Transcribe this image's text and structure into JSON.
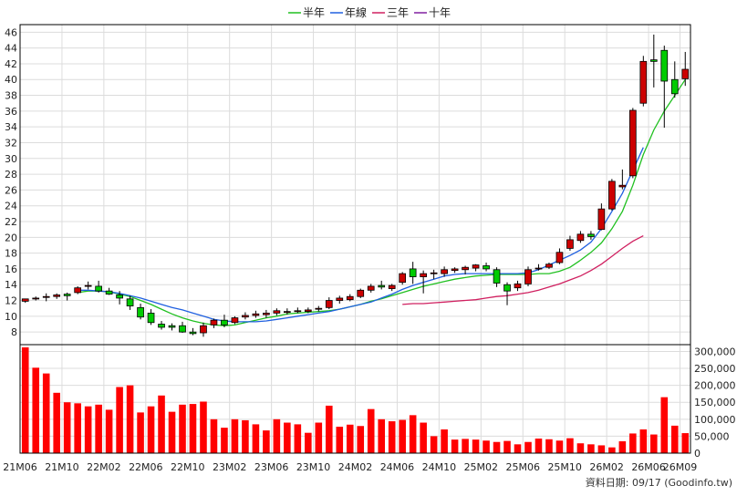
{
  "chart_data": {
    "type": "candlestick+line+bar",
    "legend": [
      {
        "name": "半年",
        "color": "#20c020"
      },
      {
        "name": "年線",
        "color": "#2060e0"
      },
      {
        "name": "三年",
        "color": "#d02060"
      },
      {
        "name": "十年",
        "color": "#8020a0"
      }
    ],
    "price_axis": {
      "ticks": [
        8,
        10,
        12,
        14,
        16,
        18,
        20,
        22,
        24,
        26,
        28,
        30,
        32,
        34,
        36,
        38,
        40,
        42,
        44,
        46
      ],
      "range": [
        6.4,
        46.5
      ]
    },
    "volume_axis": {
      "ticks": [
        "0",
        "50,000",
        "100,000",
        "150,000",
        "200,000",
        "250,000",
        "300,000"
      ],
      "range": [
        0,
        320000
      ]
    },
    "x_labels": [
      "21M06",
      "21M10",
      "22M02",
      "22M06",
      "22M10",
      "23M02",
      "23M06",
      "23M10",
      "24M02",
      "24M06",
      "24M10",
      "25M02",
      "25M06",
      "25M10",
      "26M02",
      "26M06",
      "26M09"
    ],
    "x_label_positions": [
      0,
      4,
      8,
      12,
      16,
      20,
      24,
      28,
      32,
      36,
      40,
      44,
      48,
      52,
      56,
      60,
      63
    ],
    "candles": [
      [
        11.9,
        12.2,
        11.7,
        12.2
      ],
      [
        12.2,
        12.5,
        12.0,
        12.3
      ],
      [
        12.4,
        12.9,
        11.9,
        12.5
      ],
      [
        12.5,
        12.9,
        12.2,
        12.7
      ],
      [
        12.8,
        13.0,
        12.0,
        12.6
      ],
      [
        13.0,
        13.8,
        12.8,
        13.6
      ],
      [
        13.8,
        14.4,
        13.4,
        13.9
      ],
      [
        13.8,
        14.5,
        13.0,
        13.2
      ],
      [
        13.2,
        13.6,
        12.7,
        12.8
      ],
      [
        12.7,
        13.2,
        11.5,
        12.3
      ],
      [
        12.2,
        12.6,
        10.8,
        11.3
      ],
      [
        11.1,
        11.6,
        9.6,
        9.9
      ],
      [
        10.4,
        10.9,
        8.9,
        9.2
      ],
      [
        9.0,
        9.4,
        8.3,
        8.6
      ],
      [
        8.8,
        9.1,
        8.2,
        8.6
      ],
      [
        8.8,
        9.3,
        7.9,
        8.0
      ],
      [
        8.0,
        8.5,
        7.6,
        7.8
      ],
      [
        7.9,
        9.2,
        7.4,
        8.8
      ],
      [
        8.9,
        9.7,
        8.5,
        9.5
      ],
      [
        9.5,
        10.2,
        8.6,
        8.9
      ],
      [
        9.2,
        10.0,
        9.0,
        9.8
      ],
      [
        9.9,
        10.5,
        9.6,
        10.1
      ],
      [
        10.1,
        10.7,
        9.8,
        10.3
      ],
      [
        10.2,
        10.8,
        9.8,
        10.4
      ],
      [
        10.4,
        11.0,
        10.1,
        10.7
      ],
      [
        10.6,
        11.0,
        10.2,
        10.6
      ],
      [
        10.7,
        11.1,
        10.4,
        10.7
      ],
      [
        10.6,
        11.1,
        10.4,
        10.8
      ],
      [
        10.9,
        11.3,
        10.6,
        11.0
      ],
      [
        11.1,
        12.4,
        10.9,
        12.0
      ],
      [
        12.0,
        12.6,
        11.6,
        12.3
      ],
      [
        12.1,
        12.8,
        11.9,
        12.5
      ],
      [
        12.5,
        13.5,
        12.3,
        13.3
      ],
      [
        13.3,
        14.1,
        13.0,
        13.8
      ],
      [
        13.9,
        14.5,
        13.4,
        13.7
      ],
      [
        13.5,
        14.1,
        13.2,
        13.9
      ],
      [
        14.3,
        15.6,
        14.0,
        15.4
      ],
      [
        16.0,
        16.9,
        14.1,
        15.0
      ],
      [
        15.0,
        15.8,
        12.9,
        15.4
      ],
      [
        15.4,
        15.9,
        14.7,
        15.5
      ],
      [
        15.4,
        16.3,
        15.0,
        15.9
      ],
      [
        15.8,
        16.2,
        15.5,
        16.0
      ],
      [
        15.9,
        16.4,
        15.3,
        16.2
      ],
      [
        16.1,
        16.6,
        15.7,
        16.5
      ],
      [
        16.4,
        16.8,
        15.7,
        16.0
      ],
      [
        15.9,
        16.2,
        13.7,
        14.2
      ],
      [
        14.0,
        14.3,
        11.4,
        13.2
      ],
      [
        13.6,
        14.5,
        13.2,
        14.1
      ],
      [
        14.1,
        16.3,
        13.8,
        15.9
      ],
      [
        16.0,
        16.6,
        15.8,
        16.1
      ],
      [
        16.2,
        16.8,
        16.0,
        16.6
      ],
      [
        16.8,
        18.6,
        16.6,
        18.1
      ],
      [
        18.6,
        20.2,
        18.3,
        19.7
      ],
      [
        19.6,
        20.8,
        19.3,
        20.4
      ],
      [
        20.4,
        20.8,
        19.7,
        20.1
      ],
      [
        21.0,
        24.3,
        20.9,
        23.6
      ],
      [
        23.6,
        27.4,
        23.4,
        27.1
      ],
      [
        26.4,
        28.6,
        26.1,
        26.6
      ],
      [
        27.8,
        36.4,
        27.5,
        36.1
      ],
      [
        37.0,
        43.0,
        36.6,
        42.3
      ],
      [
        42.5,
        45.7,
        39.0,
        42.3
      ],
      [
        43.7,
        44.3,
        33.9,
        39.8
      ],
      [
        40.0,
        42.3,
        37.7,
        38.2
      ],
      [
        40.1,
        43.5,
        39.2,
        41.3
      ]
    ],
    "series": [
      {
        "name": "半年",
        "start": 5,
        "values": [
          13.0,
          13.2,
          13.2,
          13.1,
          12.8,
          12.5,
          12.0,
          11.5,
          10.9,
          10.3,
          9.8,
          9.4,
          9.1,
          8.9,
          8.8,
          8.9,
          9.2,
          9.5,
          9.8,
          10.0,
          10.3,
          10.4,
          10.5,
          10.6,
          10.7,
          10.9,
          11.2,
          11.5,
          11.9,
          12.2,
          12.6,
          13.0,
          13.4,
          13.8,
          14.1,
          14.4,
          14.7,
          14.9,
          15.1,
          15.2,
          15.3,
          15.3,
          15.3,
          15.3,
          15.4,
          15.4,
          15.7,
          16.2,
          17.1,
          18.1,
          19.3,
          21.1,
          23.3,
          26.6,
          30.5,
          33.6,
          36.0,
          38.0,
          40.0
        ]
      },
      {
        "name": "年線",
        "start": 5,
        "values": [
          13.3,
          13.3,
          13.2,
          13.1,
          12.9,
          12.6,
          12.3,
          11.9,
          11.5,
          11.1,
          10.8,
          10.4,
          10.0,
          9.6,
          9.4,
          9.3,
          9.3,
          9.3,
          9.4,
          9.6,
          9.8,
          10.0,
          10.2,
          10.4,
          10.6,
          10.9,
          11.2,
          11.5,
          11.8,
          12.3,
          12.8,
          13.4,
          13.9,
          14.3,
          14.7,
          15.1,
          15.3,
          15.4,
          15.4,
          15.4,
          15.4,
          15.4,
          15.4,
          15.5,
          15.9,
          16.5,
          17.1,
          17.7,
          18.4,
          19.4,
          21.1,
          23.3,
          25.6,
          28.5,
          31.4
        ]
      },
      {
        "name": "三年",
        "start": 36,
        "values": [
          11.5,
          11.6,
          11.6,
          11.7,
          11.8,
          11.9,
          12.0,
          12.1,
          12.3,
          12.5,
          12.6,
          12.8,
          13.0,
          13.3,
          13.7,
          14.1,
          14.6,
          15.1,
          15.8,
          16.6,
          17.6,
          18.6,
          19.5,
          20.2
        ]
      }
    ],
    "volumes": [
      312000,
      252000,
      235000,
      178000,
      150000,
      147000,
      138000,
      143000,
      128000,
      195000,
      200000,
      120000,
      138000,
      170000,
      122000,
      143000,
      145000,
      152000,
      100000,
      75000,
      100000,
      97000,
      85000,
      67000,
      100000,
      90000,
      85000,
      60000,
      90000,
      140000,
      78000,
      84000,
      80000,
      130000,
      100000,
      94000,
      98000,
      112000,
      90000,
      50000,
      70000,
      40000,
      42000,
      40000,
      37000,
      33000,
      36000,
      26000,
      33000,
      43000,
      41000,
      37000,
      44000,
      29000,
      26000,
      23000,
      17000,
      35000,
      58000,
      70000,
      55000,
      165000,
      81000,
      59000
    ],
    "footer_note": "資料日期: 09/17   (Goodinfo.tw)"
  }
}
